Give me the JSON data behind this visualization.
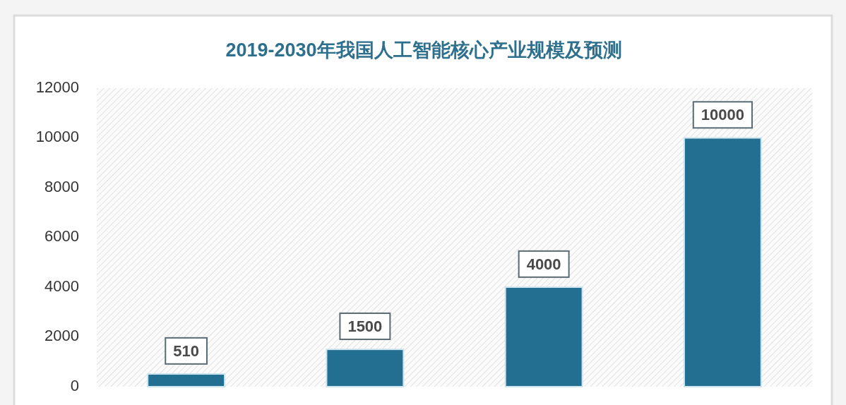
{
  "chart_data": {
    "type": "bar",
    "title": "2019-2030年我国人工智能核心产业规模及预测",
    "categories": [
      null,
      null,
      null,
      null
    ],
    "values": [
      510,
      1500,
      4000,
      10000
    ],
    "color": "#236f91",
    "ylim": [
      0,
      12000
    ],
    "yticks": [
      0,
      2000,
      4000,
      6000,
      8000,
      10000,
      12000
    ],
    "data_labels": true
  }
}
